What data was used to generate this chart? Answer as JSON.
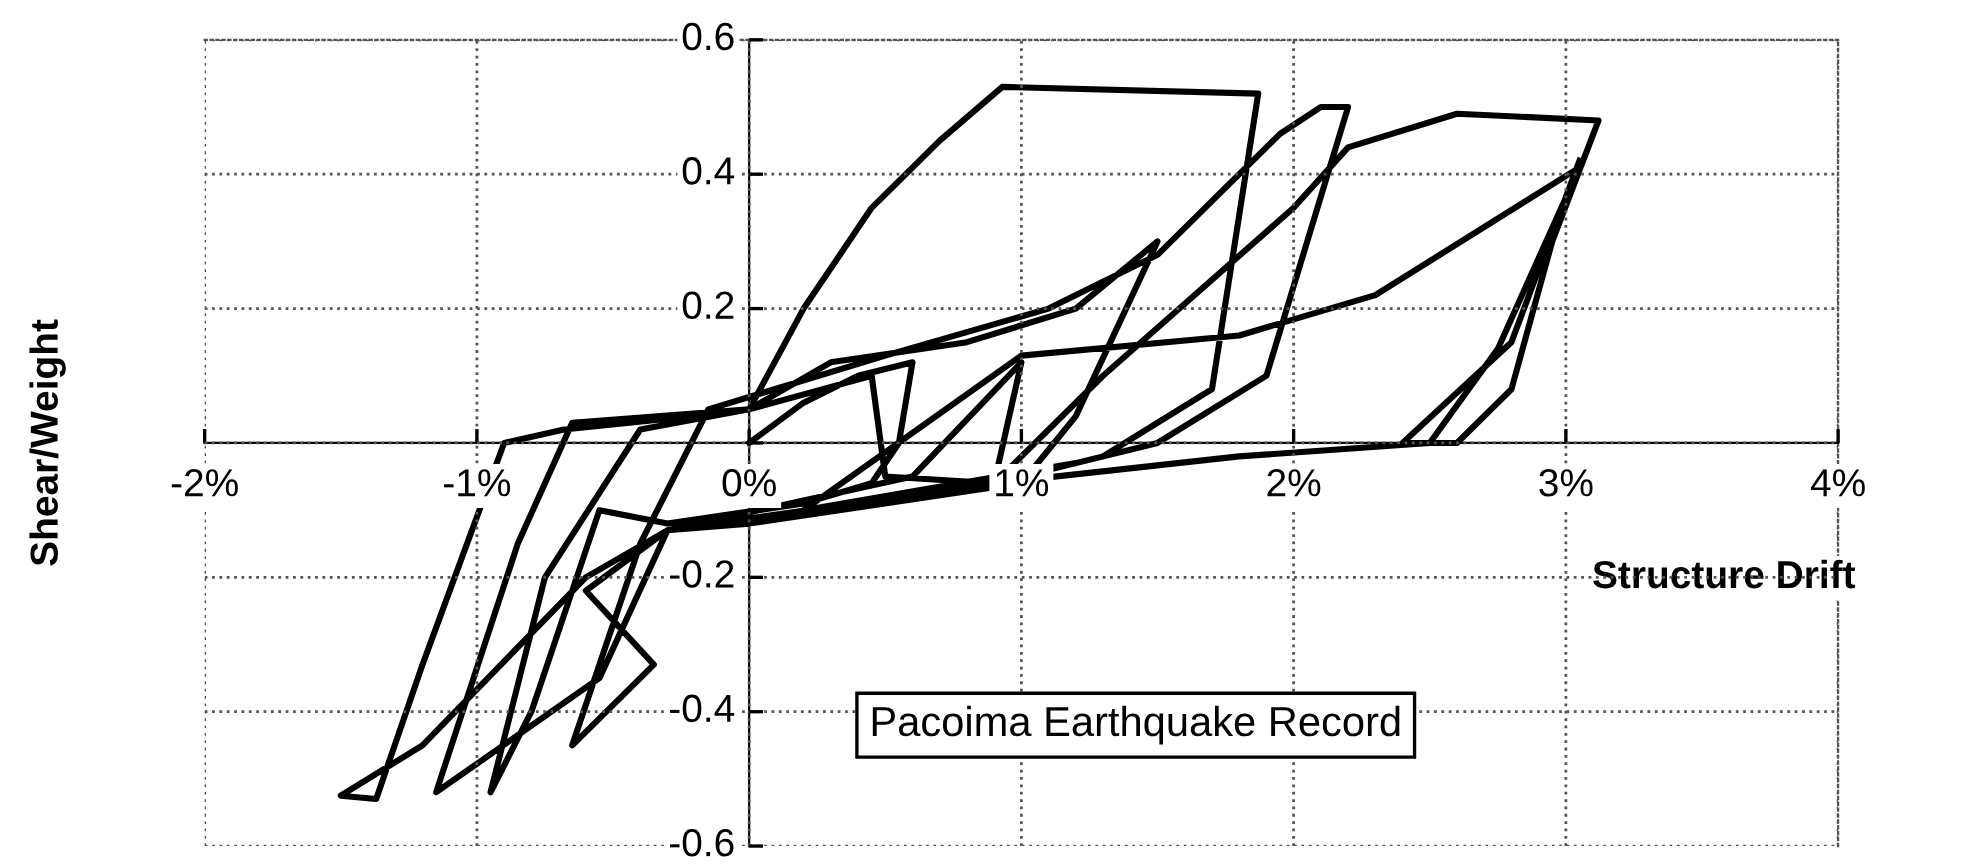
{
  "chart_data": {
    "type": "line",
    "xlabel": "Structure Drift",
    "ylabel": "Shear/Weight",
    "annotations": [
      "Pacoima Earthquake Record"
    ],
    "xlim": [
      -2,
      4
    ],
    "ylim": [
      -0.6,
      0.6
    ],
    "xticks": [
      {
        "value": -2,
        "label": "-2%"
      },
      {
        "value": -1,
        "label": "-1%"
      },
      {
        "value": 0,
        "label": "0%"
      },
      {
        "value": 1,
        "label": "1%"
      },
      {
        "value": 2,
        "label": "2%"
      },
      {
        "value": 3,
        "label": "3%"
      },
      {
        "value": 4,
        "label": "4%"
      }
    ],
    "yticks": [
      -0.6,
      -0.4,
      -0.2,
      {
        "value": 0,
        "label": null
      },
      0.2,
      0.4,
      0.6
    ],
    "grid": true,
    "marker": "none",
    "line_style": "solid",
    "series": [
      {
        "color": "#000000",
        "x": [
          0,
          0.2,
          0.4,
          0.6,
          0.55,
          0.45,
          0.2,
          -0.3,
          -0.55,
          -0.8,
          -0.95,
          -0.75,
          -0.4,
          0,
          0.45,
          0.5,
          0.9,
          1.0,
          0.6,
          -0.3,
          -0.55,
          -1.15,
          -0.85,
          -0.65,
          0,
          0.3,
          0.8,
          1.2,
          1.5,
          1.2,
          1.0,
          0,
          -0.3,
          -0.6,
          -1.2,
          -1.5,
          -1.37,
          -1.2,
          -0.9,
          -0.68,
          -0.2,
          0,
          0.2,
          0.45,
          0.7,
          0.93,
          1.87,
          1.7,
          1.3,
          0.9,
          -0.3,
          -0.6,
          -0.35,
          -0.65,
          -0.4,
          -0.15,
          0.5,
          1.1,
          1.5,
          1.95,
          2.1,
          2.2,
          1.9,
          1.5,
          1.2,
          0.2,
          1.0,
          1.8,
          2.3,
          3.05,
          2.75,
          2.5,
          1.8,
          0.9,
          1.3,
          2.0,
          2.2,
          2.6,
          3.12,
          2.95,
          2.8,
          2.6,
          2.4,
          2.8,
          3.05
        ],
        "values": [
          0,
          0.06,
          0.1,
          0.12,
          0.0,
          -0.06,
          -0.09,
          -0.12,
          -0.1,
          -0.4,
          -0.52,
          -0.2,
          0.02,
          0.05,
          0.1,
          -0.05,
          -0.06,
          0.12,
          -0.05,
          -0.13,
          -0.35,
          -0.52,
          -0.15,
          0.03,
          0.05,
          0.12,
          0.15,
          0.2,
          0.3,
          0.04,
          -0.06,
          -0.12,
          -0.13,
          -0.2,
          -0.45,
          -0.525,
          -0.53,
          -0.33,
          0,
          0.02,
          0.04,
          0.05,
          0.2,
          0.35,
          0.45,
          0.53,
          0.52,
          0.08,
          -0.02,
          -0.06,
          -0.13,
          -0.22,
          -0.33,
          -0.45,
          -0.15,
          0.05,
          0.13,
          0.2,
          0.28,
          0.46,
          0.5,
          0.5,
          0.1,
          0.0,
          -0.03,
          -0.1,
          0.13,
          0.16,
          0.22,
          0.41,
          0.14,
          0,
          -0.02,
          -0.06,
          0.1,
          0.35,
          0.44,
          0.49,
          0.48,
          0.3,
          0.08,
          0.0,
          0.0,
          0.15,
          0.42
        ]
      }
    ]
  }
}
